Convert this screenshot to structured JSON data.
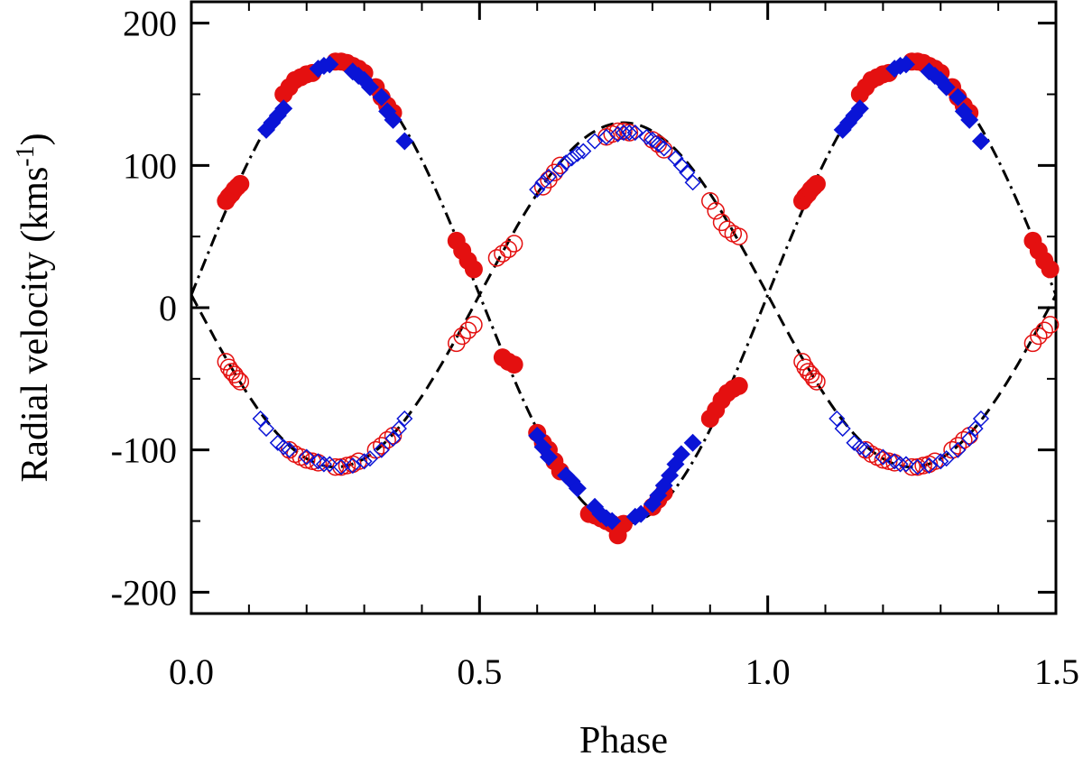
{
  "chart_data": {
    "type": "scatter",
    "title": "",
    "xlabel": "Phase",
    "ylabel_main": "Radial velocity (kms",
    "ylabel_sup": "-1",
    "ylabel_close": ")",
    "xlim": [
      0.0,
      1.5
    ],
    "ylim": [
      -215,
      215
    ],
    "x_ticks": [
      0.0,
      0.5,
      1.0,
      1.5
    ],
    "x_tick_labels": [
      "0.0",
      "0.5",
      "1.0",
      "1.5"
    ],
    "y_ticks": [
      -200,
      -100,
      0,
      100,
      200
    ],
    "y_tick_labels": [
      "-200",
      "-100",
      "0",
      "100",
      "200"
    ],
    "colors": {
      "red": "#e41010",
      "blue": "#0a14d6",
      "black": "#000000"
    },
    "models": [
      {
        "name": "primary-model",
        "style": "dash-dot",
        "gamma": 9,
        "K": 161,
        "sign": 1
      },
      {
        "name": "secondary-model",
        "style": "dashed",
        "gamma": 9,
        "K": 121,
        "sign": -1
      }
    ],
    "series": [
      {
        "name": "primary-red-filled",
        "marker": "circle",
        "filled": true,
        "color": "red",
        "x": [
          0.06,
          0.065,
          0.07,
          0.075,
          0.08,
          0.085,
          0.16,
          0.17,
          0.18,
          0.19,
          0.2,
          0.21,
          0.25,
          0.26,
          0.27,
          0.28,
          0.29,
          0.3,
          0.32,
          0.33,
          0.34,
          0.35,
          0.46,
          0.47,
          0.48,
          0.49,
          0.54,
          0.55,
          0.56,
          0.6,
          0.61,
          0.62,
          0.63,
          0.64,
          0.69,
          0.7,
          0.71,
          0.72,
          0.73,
          0.74,
          0.75,
          0.8,
          0.81,
          0.82,
          0.9,
          0.91,
          0.92,
          0.93,
          0.94,
          0.95,
          1.06,
          1.065,
          1.07,
          1.075,
          1.08,
          1.085,
          1.16,
          1.17,
          1.18,
          1.19,
          1.2,
          1.21,
          1.25,
          1.26,
          1.27,
          1.28,
          1.29,
          1.3,
          1.32,
          1.33,
          1.34,
          1.35,
          1.46,
          1.47,
          1.48,
          1.49
        ],
        "y": [
          75,
          78,
          80,
          83,
          85,
          87,
          150,
          155,
          160,
          162,
          164,
          165,
          173,
          173,
          172,
          170,
          168,
          165,
          155,
          148,
          142,
          137,
          47,
          40,
          33,
          27,
          -35,
          -38,
          -40,
          -88,
          -95,
          -100,
          -108,
          -115,
          -145,
          -146,
          -148,
          -150,
          -152,
          -160,
          -152,
          -140,
          -135,
          -130,
          -78,
          -72,
          -65,
          -60,
          -57,
          -55,
          75,
          78,
          80,
          83,
          85,
          87,
          150,
          155,
          160,
          162,
          164,
          165,
          173,
          173,
          172,
          170,
          168,
          165,
          155,
          148,
          142,
          137,
          47,
          40,
          33,
          27
        ]
      },
      {
        "name": "primary-blue-filled",
        "marker": "diamond",
        "filled": true,
        "color": "blue",
        "x": [
          0.13,
          0.14,
          0.15,
          0.16,
          0.22,
          0.23,
          0.24,
          0.28,
          0.29,
          0.3,
          0.31,
          0.33,
          0.34,
          0.35,
          0.37,
          0.6,
          0.61,
          0.62,
          0.65,
          0.66,
          0.67,
          0.7,
          0.71,
          0.72,
          0.73,
          0.77,
          0.78,
          0.8,
          0.81,
          0.82,
          0.83,
          0.84,
          0.85,
          0.87,
          1.13,
          1.14,
          1.15,
          1.16,
          1.22,
          1.23,
          1.24,
          1.28,
          1.29,
          1.3,
          1.31,
          1.33,
          1.34,
          1.35,
          1.37
        ],
        "y": [
          125,
          130,
          135,
          140,
          168,
          170,
          171,
          166,
          163,
          160,
          155,
          148,
          138,
          132,
          117,
          -90,
          -98,
          -105,
          -118,
          -122,
          -127,
          -140,
          -145,
          -148,
          -150,
          -147,
          -145,
          -138,
          -132,
          -125,
          -118,
          -110,
          -103,
          -95,
          125,
          130,
          135,
          140,
          168,
          170,
          171,
          166,
          163,
          160,
          155,
          148,
          138,
          132,
          117
        ]
      },
      {
        "name": "secondary-red-open",
        "marker": "circle",
        "filled": false,
        "color": "red",
        "x": [
          0.06,
          0.065,
          0.07,
          0.075,
          0.08,
          0.085,
          0.17,
          0.18,
          0.19,
          0.2,
          0.21,
          0.22,
          0.25,
          0.26,
          0.27,
          0.28,
          0.29,
          0.32,
          0.33,
          0.34,
          0.35,
          0.46,
          0.47,
          0.48,
          0.49,
          0.53,
          0.54,
          0.55,
          0.56,
          0.61,
          0.62,
          0.63,
          0.64,
          0.72,
          0.73,
          0.74,
          0.75,
          0.76,
          0.8,
          0.81,
          0.82,
          0.9,
          0.91,
          0.92,
          0.93,
          0.94,
          0.95,
          1.06,
          1.065,
          1.07,
          1.075,
          1.08,
          1.085,
          1.17,
          1.18,
          1.19,
          1.2,
          1.21,
          1.22,
          1.25,
          1.26,
          1.27,
          1.28,
          1.29,
          1.32,
          1.33,
          1.34,
          1.35,
          1.46,
          1.47,
          1.48,
          1.49
        ],
        "y": [
          -38,
          -42,
          -45,
          -47,
          -50,
          -52,
          -100,
          -103,
          -105,
          -107,
          -108,
          -109,
          -112,
          -112,
          -111,
          -110,
          -108,
          -100,
          -97,
          -93,
          -90,
          -25,
          -20,
          -16,
          -12,
          35,
          38,
          41,
          45,
          85,
          90,
          95,
          100,
          120,
          122,
          124,
          124,
          123,
          118,
          115,
          111,
          75,
          68,
          60,
          55,
          52,
          50,
          -38,
          -42,
          -45,
          -47,
          -50,
          -52,
          -100,
          -103,
          -105,
          -107,
          -108,
          -109,
          -112,
          -112,
          -111,
          -110,
          -108,
          -100,
          -97,
          -93,
          -90,
          -25,
          -20,
          -16,
          -12
        ]
      },
      {
        "name": "secondary-blue-open",
        "marker": "diamond",
        "filled": false,
        "color": "blue",
        "x": [
          0.12,
          0.13,
          0.15,
          0.16,
          0.17,
          0.2,
          0.22,
          0.23,
          0.24,
          0.26,
          0.28,
          0.3,
          0.31,
          0.33,
          0.35,
          0.36,
          0.37,
          0.6,
          0.61,
          0.62,
          0.64,
          0.65,
          0.66,
          0.67,
          0.68,
          0.7,
          0.72,
          0.74,
          0.75,
          0.76,
          0.77,
          0.79,
          0.8,
          0.81,
          0.82,
          0.84,
          0.85,
          0.86,
          0.87,
          1.12,
          1.13,
          1.15,
          1.16,
          1.17,
          1.2,
          1.22,
          1.23,
          1.24,
          1.26,
          1.28,
          1.3,
          1.31,
          1.33,
          1.35,
          1.36,
          1.37
        ],
        "y": [
          -78,
          -85,
          -95,
          -98,
          -100,
          -105,
          -108,
          -110,
          -110,
          -112,
          -111,
          -108,
          -106,
          -100,
          -92,
          -85,
          -78,
          83,
          88,
          92,
          97,
          102,
          105,
          108,
          110,
          117,
          120,
          122,
          123,
          123,
          123,
          120,
          118,
          115,
          112,
          105,
          100,
          95,
          88,
          -78,
          -85,
          -95,
          -98,
          -100,
          -105,
          -108,
          -110,
          -110,
          -112,
          -111,
          -108,
          -106,
          -100,
          -92,
          -85,
          -78
        ]
      }
    ]
  }
}
